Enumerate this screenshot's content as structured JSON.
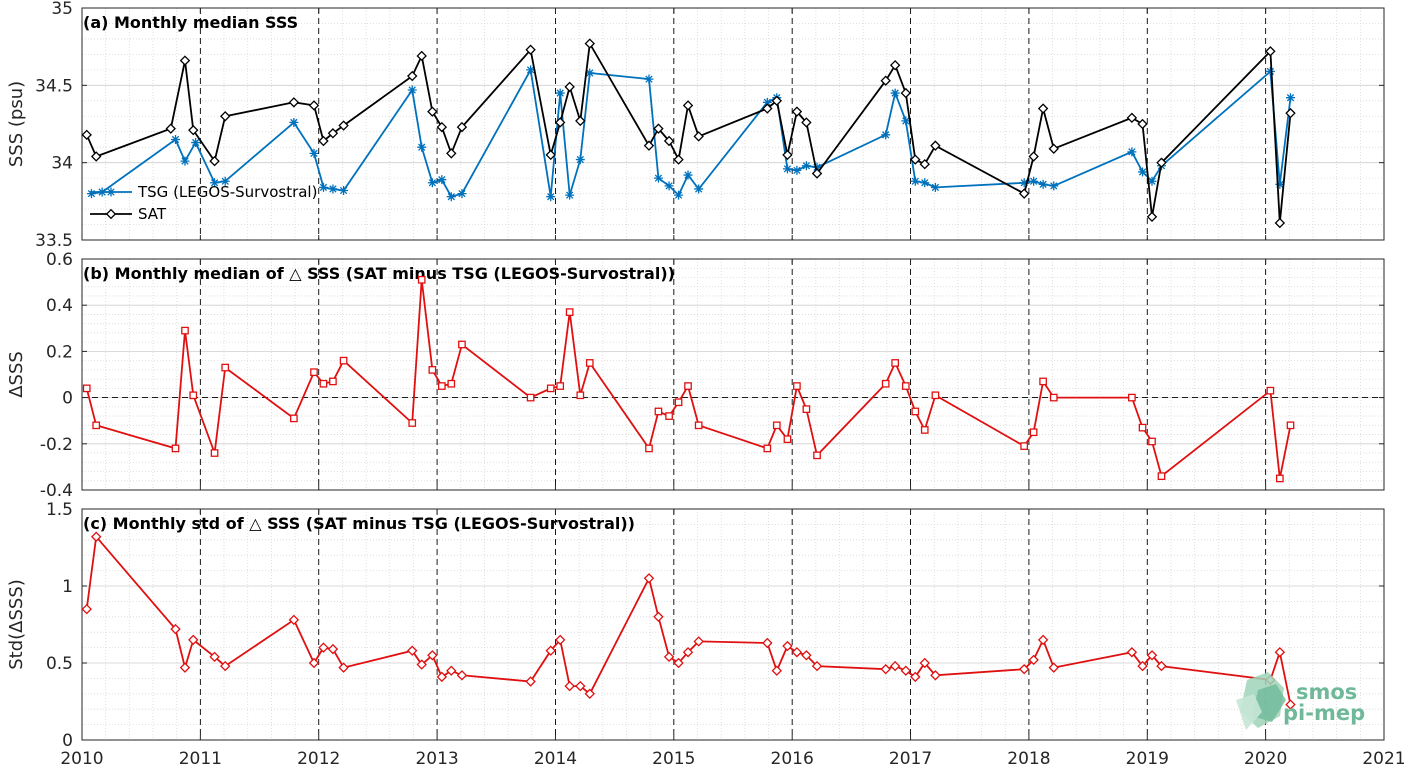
{
  "colors": {
    "tsg": "#0072BD",
    "sat": "#000000",
    "delta": "#E01010",
    "grid": "#d8d8d8",
    "axis": "#262626",
    "logo": "#6fb99a"
  },
  "logo": {
    "line1": "smos",
    "line2": "pi-mep",
    "icon": "smos-pi-mep-logo-icon"
  },
  "chart_data": [
    {
      "type": "line",
      "title": "(a) Monthly median SSS",
      "xlabel": "",
      "ylabel": "SSS (psu)",
      "xlim": [
        2010,
        2021
      ],
      "ylim": [
        33.5,
        35
      ],
      "x_ticks": [
        "2010",
        "2011",
        "2012",
        "2013",
        "2014",
        "2015",
        "2016",
        "2017",
        "2018",
        "2019",
        "2020",
        "2021"
      ],
      "y_ticks": [
        "33.5",
        "34",
        "34.5",
        "35"
      ],
      "grid": true,
      "vertical_dashed_lines_at_years": true,
      "legend": "left",
      "series": [
        {
          "name": "TSG (LEGOS-Survostral)",
          "marker": "star",
          "x": [
            2010.08,
            2010.17,
            2010.79,
            2010.87,
            2010.96,
            2011.12,
            2011.21,
            2011.79,
            2011.96,
            2012.04,
            2012.12,
            2012.21,
            2012.79,
            2012.87,
            2012.96,
            2013.04,
            2013.12,
            2013.21,
            2013.79,
            2013.96,
            2014.04,
            2014.12,
            2014.21,
            2014.29,
            2014.79,
            2014.87,
            2014.96,
            2015.04,
            2015.12,
            2015.21,
            2015.79,
            2015.87,
            2015.96,
            2016.04,
            2016.12,
            2016.21,
            2016.79,
            2016.87,
            2016.96,
            2017.04,
            2017.12,
            2017.21,
            2017.96,
            2018.04,
            2018.12,
            2018.21,
            2018.87,
            2018.96,
            2019.04,
            2019.12,
            2020.04,
            2020.12,
            2020.21
          ],
          "values": [
            33.8,
            33.81,
            34.15,
            34.01,
            34.13,
            33.87,
            33.88,
            34.26,
            34.06,
            33.84,
            33.83,
            33.82,
            34.47,
            34.1,
            33.87,
            33.89,
            33.78,
            33.8,
            34.6,
            33.78,
            34.45,
            33.79,
            34.02,
            34.58,
            34.54,
            33.9,
            33.85,
            33.79,
            33.92,
            33.83,
            34.39,
            34.42,
            33.96,
            33.95,
            33.98,
            33.97,
            34.18,
            34.45,
            34.27,
            33.88,
            33.87,
            33.84,
            33.87,
            33.88,
            33.86,
            33.85,
            34.07,
            33.94,
            33.88,
            33.98,
            34.59,
            33.86,
            34.42
          ]
        },
        {
          "name": "SAT",
          "marker": "diamond",
          "x": [
            2010.04,
            2010.12,
            2010.75,
            2010.87,
            2010.94,
            2011.12,
            2011.21,
            2011.79,
            2011.96,
            2012.04,
            2012.12,
            2012.21,
            2012.79,
            2012.87,
            2012.96,
            2013.04,
            2013.12,
            2013.21,
            2013.79,
            2013.96,
            2014.04,
            2014.12,
            2014.21,
            2014.29,
            2014.79,
            2014.87,
            2014.96,
            2015.04,
            2015.12,
            2015.21,
            2015.79,
            2015.87,
            2015.96,
            2016.04,
            2016.12,
            2016.21,
            2016.79,
            2016.87,
            2016.96,
            2017.04,
            2017.12,
            2017.21,
            2017.96,
            2018.04,
            2018.12,
            2018.21,
            2018.87,
            2018.96,
            2019.04,
            2019.12,
            2020.04,
            2020.12,
            2020.21
          ],
          "values": [
            34.18,
            34.04,
            34.22,
            34.66,
            34.21,
            34.01,
            34.3,
            34.39,
            34.37,
            34.14,
            34.19,
            34.24,
            34.56,
            34.69,
            34.33,
            34.23,
            34.06,
            34.23,
            34.73,
            34.05,
            34.26,
            34.49,
            34.27,
            34.77,
            34.11,
            34.22,
            34.14,
            34.02,
            34.37,
            34.17,
            34.35,
            34.4,
            34.05,
            34.33,
            34.26,
            33.93,
            34.53,
            34.63,
            34.45,
            34.02,
            33.99,
            34.11,
            33.8,
            34.04,
            34.35,
            34.09,
            34.29,
            34.25,
            33.65,
            34.0,
            34.72,
            33.61,
            34.32
          ]
        }
      ]
    },
    {
      "type": "line",
      "title": "(b) Monthly median of △ SSS (SAT minus TSG (LEGOS-Survostral))",
      "xlabel": "",
      "ylabel": "ΔSSS",
      "xlim": [
        2010,
        2021
      ],
      "ylim": [
        -0.4,
        0.6
      ],
      "x_ticks": [
        "2010",
        "2011",
        "2012",
        "2013",
        "2014",
        "2015",
        "2016",
        "2017",
        "2018",
        "2019",
        "2020",
        "2021"
      ],
      "y_ticks": [
        "-0.4",
        "-0.2",
        "0",
        "0.2",
        "0.4",
        "0.6"
      ],
      "grid": true,
      "zero_line": "dashed",
      "series": [
        {
          "marker": "square",
          "x": [
            2010.04,
            2010.12,
            2010.79,
            2010.87,
            2010.94,
            2011.12,
            2011.21,
            2011.79,
            2011.96,
            2012.04,
            2012.12,
            2012.21,
            2012.79,
            2012.87,
            2012.96,
            2013.04,
            2013.12,
            2013.21,
            2013.79,
            2013.96,
            2014.04,
            2014.12,
            2014.21,
            2014.29,
            2014.79,
            2014.87,
            2014.96,
            2015.04,
            2015.12,
            2015.21,
            2015.79,
            2015.87,
            2015.96,
            2016.04,
            2016.12,
            2016.21,
            2016.79,
            2016.87,
            2016.96,
            2017.04,
            2017.12,
            2017.21,
            2017.96,
            2018.04,
            2018.12,
            2018.21,
            2018.87,
            2018.96,
            2019.04,
            2019.12,
            2020.04,
            2020.12,
            2020.21
          ],
          "values": [
            0.04,
            -0.12,
            -0.22,
            0.29,
            0.01,
            -0.24,
            0.13,
            -0.09,
            0.11,
            0.06,
            0.07,
            0.16,
            -0.11,
            0.51,
            0.12,
            0.05,
            0.06,
            0.23,
            0.0,
            0.04,
            0.05,
            0.37,
            0.01,
            0.15,
            -0.22,
            -0.06,
            -0.08,
            -0.02,
            0.05,
            -0.12,
            -0.22,
            -0.12,
            -0.18,
            0.05,
            -0.05,
            -0.25,
            0.06,
            0.15,
            0.05,
            -0.06,
            -0.14,
            0.01,
            -0.21,
            -0.15,
            0.07,
            0.0,
            0.0,
            -0.13,
            -0.19,
            -0.34,
            0.03,
            -0.35,
            -0.12
          ]
        }
      ]
    },
    {
      "type": "line",
      "title": "(c) Monthly std of △ SSS (SAT minus TSG (LEGOS-Survostral))",
      "xlabel": "",
      "ylabel": "Std(ΔSSS)",
      "xlim": [
        2010,
        2021
      ],
      "ylim": [
        0,
        1.5
      ],
      "x_ticks": [
        "2010",
        "2011",
        "2012",
        "2013",
        "2014",
        "2015",
        "2016",
        "2017",
        "2018",
        "2019",
        "2020",
        "2021"
      ],
      "y_ticks": [
        "0",
        "0.5",
        "1",
        "1.5"
      ],
      "grid": true,
      "series": [
        {
          "marker": "diamond",
          "x": [
            2010.04,
            2010.12,
            2010.79,
            2010.87,
            2010.94,
            2011.12,
            2011.21,
            2011.79,
            2011.96,
            2012.04,
            2012.12,
            2012.21,
            2012.79,
            2012.87,
            2012.96,
            2013.04,
            2013.12,
            2013.21,
            2013.79,
            2013.96,
            2014.04,
            2014.12,
            2014.21,
            2014.29,
            2014.79,
            2014.87,
            2014.96,
            2015.04,
            2015.12,
            2015.21,
            2015.79,
            2015.87,
            2015.96,
            2016.04,
            2016.12,
            2016.21,
            2016.79,
            2016.87,
            2016.96,
            2017.04,
            2017.12,
            2017.21,
            2017.96,
            2018.04,
            2018.12,
            2018.21,
            2018.87,
            2018.96,
            2019.04,
            2019.12,
            2020.04,
            2020.12,
            2020.21
          ],
          "values": [
            0.85,
            1.32,
            0.72,
            0.47,
            0.65,
            0.54,
            0.48,
            0.78,
            0.5,
            0.6,
            0.59,
            0.47,
            0.58,
            0.49,
            0.55,
            0.41,
            0.45,
            0.42,
            0.38,
            0.58,
            0.65,
            0.35,
            0.35,
            0.3,
            1.05,
            0.8,
            0.54,
            0.5,
            0.57,
            0.64,
            0.63,
            0.45,
            0.61,
            0.57,
            0.55,
            0.48,
            0.46,
            0.48,
            0.45,
            0.41,
            0.5,
            0.42,
            0.46,
            0.52,
            0.65,
            0.47,
            0.57,
            0.48,
            0.55,
            0.48,
            0.39,
            0.57,
            0.23
          ]
        }
      ]
    }
  ]
}
